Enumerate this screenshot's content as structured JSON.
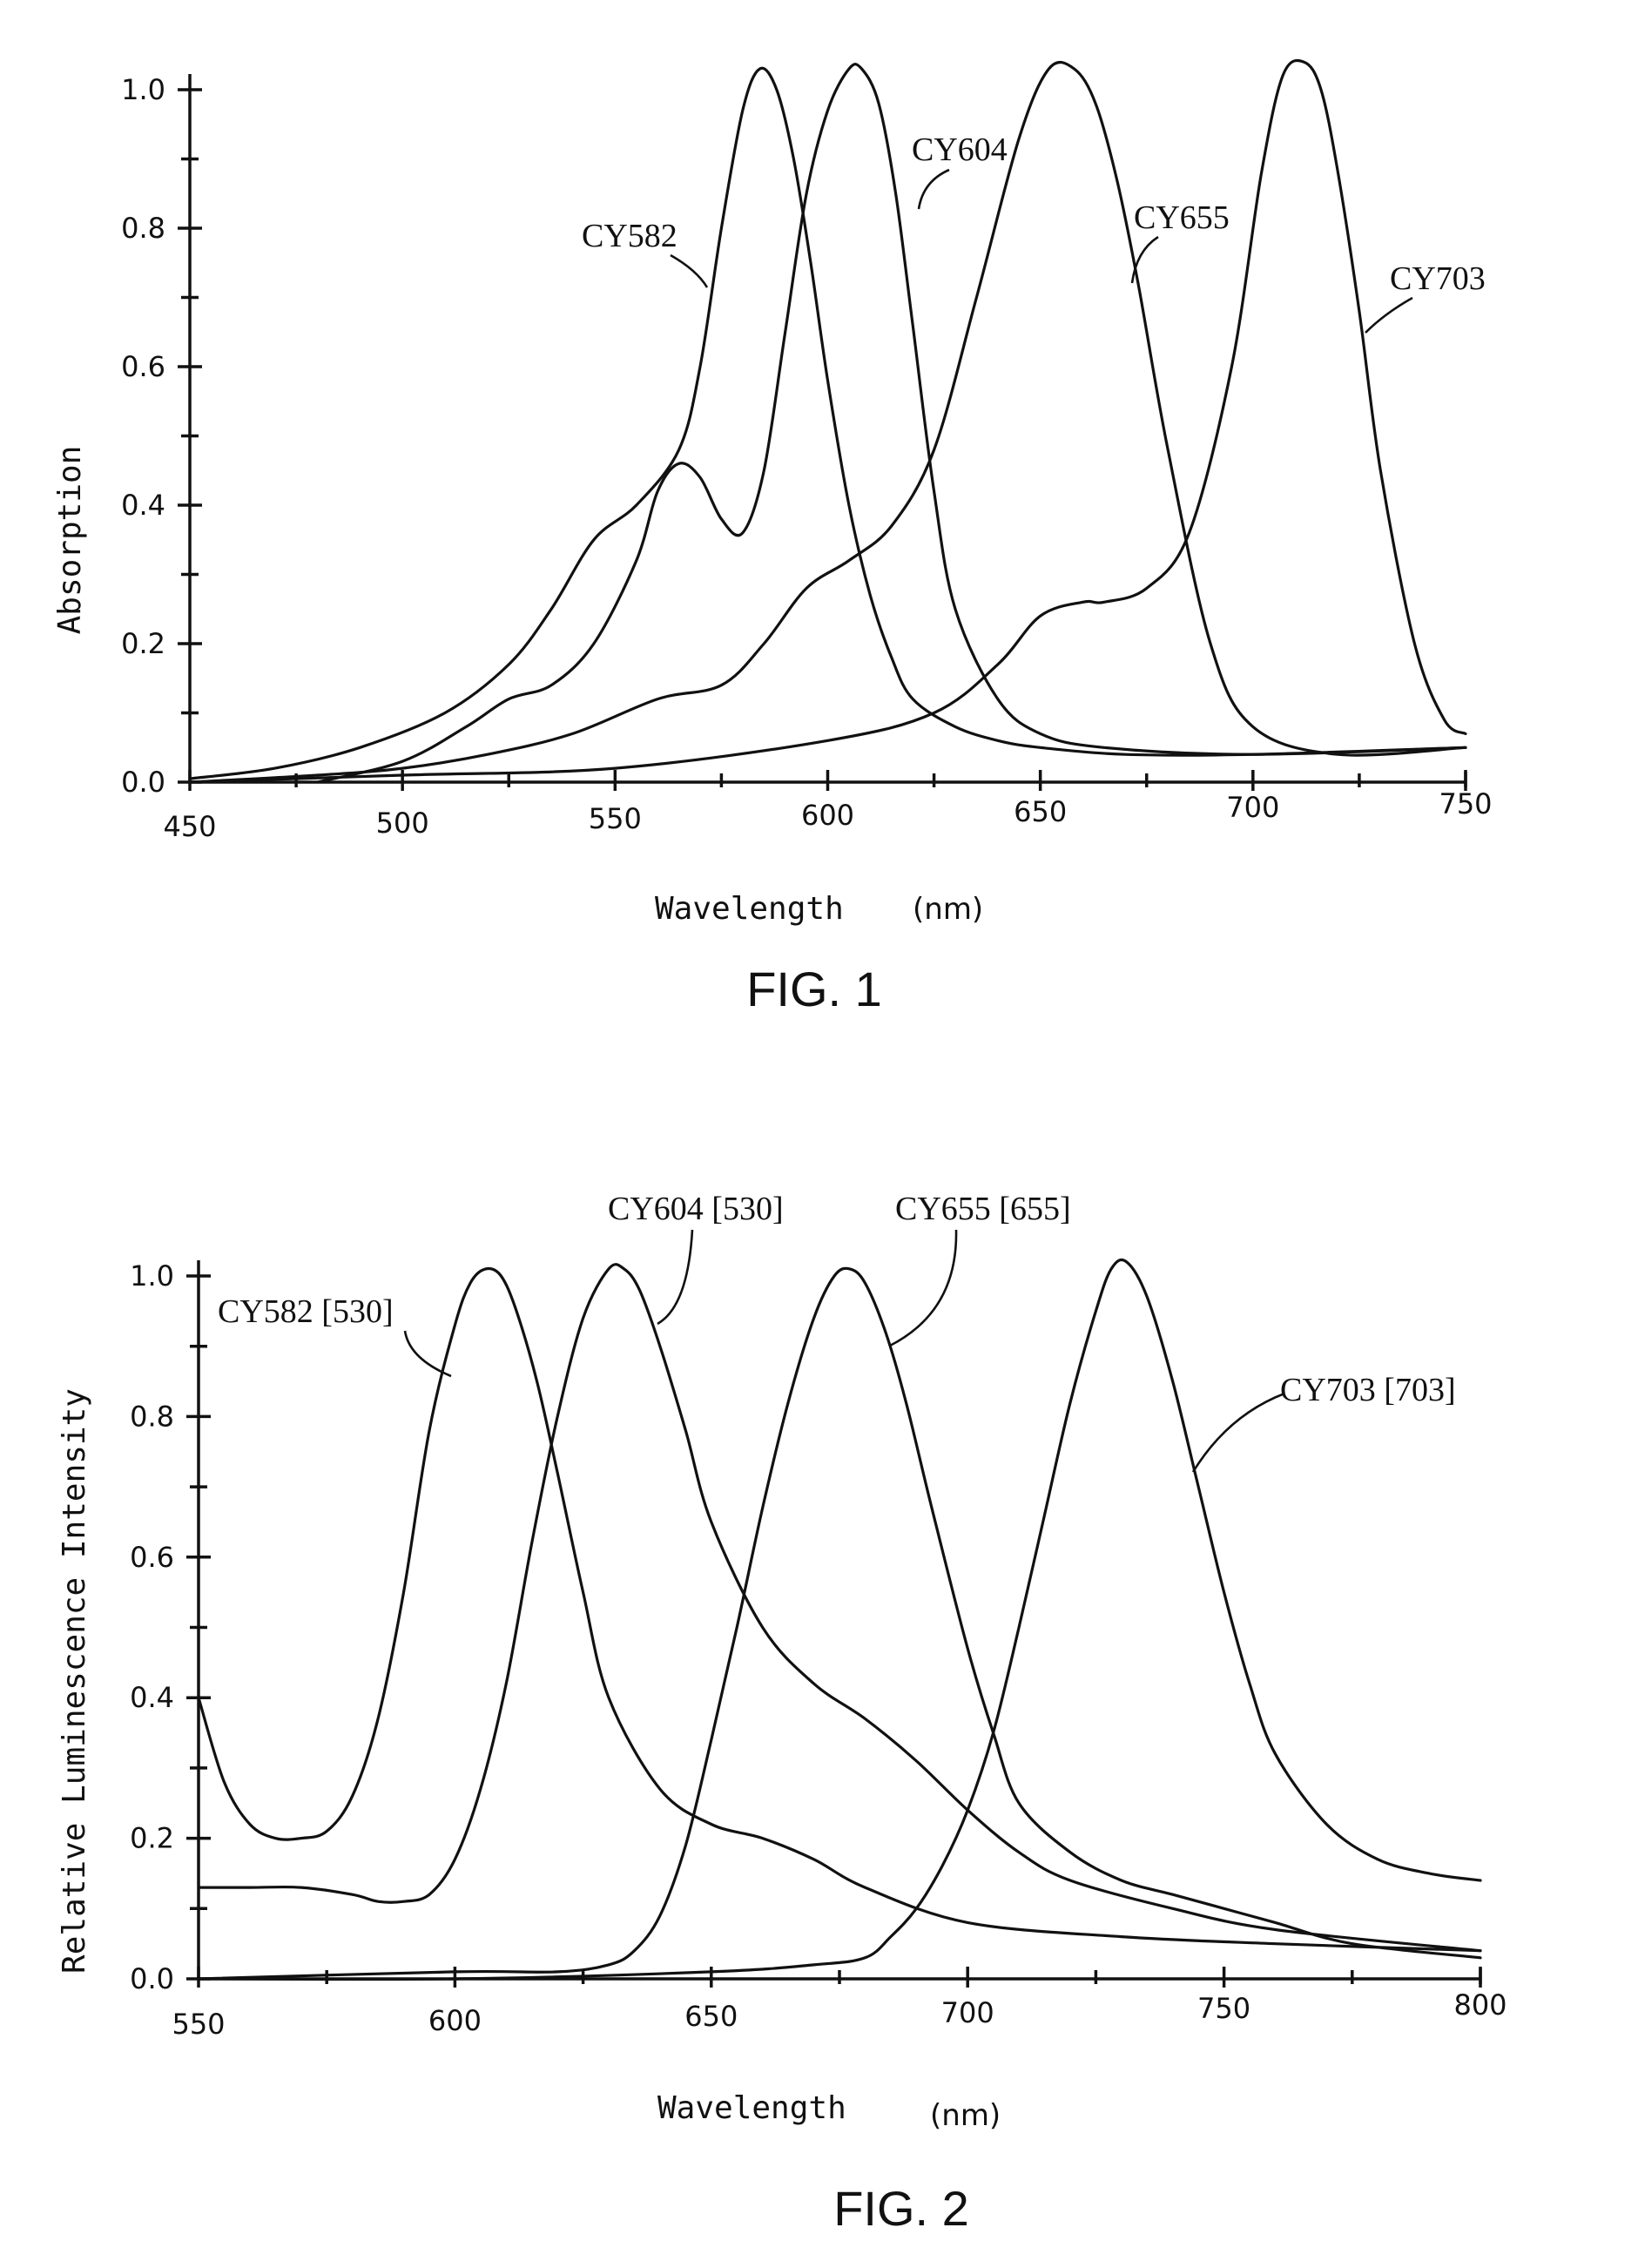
{
  "chart_data": [
    {
      "type": "line",
      "caption": "FIG. 1",
      "xlabel": "Wavelength",
      "xunit": "(nm)",
      "ylabel": "Absorption",
      "xlim": [
        450,
        750
      ],
      "ylim": [
        0,
        1.0
      ],
      "x_tick_labels": [
        "450",
        "500",
        "550",
        "600",
        "650",
        "700",
        "750"
      ],
      "y_tick_labels": [
        "0.0",
        "0.2",
        "0.4",
        "0.6",
        "0.8",
        "1.0"
      ],
      "series": [
        {
          "name": "CY582",
          "x": [
            450,
            470,
            490,
            510,
            525,
            535,
            545,
            555,
            565,
            570,
            575,
            580,
            584,
            588,
            592,
            596,
            600,
            605,
            610,
            615,
            620,
            630,
            640,
            650,
            670,
            700,
            750
          ],
          "y": [
            0.005,
            0.02,
            0.05,
            0.1,
            0.17,
            0.25,
            0.35,
            0.4,
            0.48,
            0.6,
            0.8,
            0.97,
            1.03,
            1.0,
            0.9,
            0.75,
            0.58,
            0.4,
            0.27,
            0.18,
            0.12,
            0.08,
            0.06,
            0.05,
            0.04,
            0.04,
            0.05
          ]
        },
        {
          "name": "CY604",
          "x": [
            480,
            500,
            515,
            525,
            535,
            545,
            555,
            560,
            565,
            570,
            575,
            580,
            585,
            590,
            595,
            600,
            605,
            608,
            612,
            616,
            620,
            625,
            630,
            640,
            650,
            665,
            700,
            750
          ],
          "y": [
            0.0,
            0.03,
            0.08,
            0.12,
            0.14,
            0.2,
            0.32,
            0.42,
            0.46,
            0.44,
            0.38,
            0.36,
            0.45,
            0.65,
            0.85,
            0.97,
            1.03,
            1.03,
            0.98,
            0.85,
            0.66,
            0.42,
            0.25,
            0.12,
            0.07,
            0.05,
            0.04,
            0.05
          ]
        },
        {
          "name": "CY655",
          "x": [
            450,
            480,
            500,
            520,
            540,
            560,
            575,
            585,
            595,
            605,
            615,
            625,
            635,
            645,
            652,
            658,
            663,
            668,
            673,
            680,
            690,
            700,
            720,
            750
          ],
          "y": [
            0.0,
            0.01,
            0.02,
            0.04,
            0.07,
            0.12,
            0.14,
            0.2,
            0.28,
            0.32,
            0.37,
            0.48,
            0.7,
            0.93,
            1.03,
            1.03,
            0.98,
            0.87,
            0.72,
            0.48,
            0.2,
            0.08,
            0.04,
            0.05
          ]
        },
        {
          "name": "CY703",
          "x": [
            450,
            500,
            550,
            600,
            625,
            640,
            650,
            660,
            665,
            675,
            685,
            695,
            702,
            707,
            712,
            716,
            720,
            725,
            730,
            738,
            745,
            750
          ],
          "y": [
            0.0,
            0.01,
            0.02,
            0.06,
            0.1,
            0.17,
            0.24,
            0.26,
            0.26,
            0.28,
            0.36,
            0.6,
            0.88,
            1.02,
            1.04,
            1.0,
            0.88,
            0.68,
            0.45,
            0.2,
            0.09,
            0.07
          ]
        }
      ]
    },
    {
      "type": "line",
      "caption": "FIG. 2",
      "xlabel": "Wavelength",
      "xunit": "(nm)",
      "ylabel": "Relative Luminescence Intensity",
      "xlim": [
        550,
        800
      ],
      "ylim": [
        0,
        1.0
      ],
      "x_tick_labels": [
        "550",
        "600",
        "650",
        "700",
        "750",
        "800"
      ],
      "y_tick_labels": [
        "0.0",
        "0.2",
        "0.4",
        "0.6",
        "0.8",
        "1.0"
      ],
      "series": [
        {
          "name": "CY582 [530]",
          "x": [
            550,
            555,
            560,
            565,
            570,
            575,
            580,
            585,
            590,
            595,
            600,
            603,
            606,
            609,
            612,
            616,
            620,
            625,
            630,
            640,
            650,
            660,
            670,
            680,
            700,
            730,
            760,
            800
          ],
          "y": [
            0.4,
            0.28,
            0.22,
            0.2,
            0.2,
            0.21,
            0.26,
            0.37,
            0.55,
            0.78,
            0.93,
            0.99,
            1.01,
            1.0,
            0.95,
            0.85,
            0.72,
            0.55,
            0.4,
            0.27,
            0.22,
            0.2,
            0.17,
            0.13,
            0.08,
            0.06,
            0.05,
            0.04
          ]
        },
        {
          "name": "CY604 [530]",
          "x": [
            550,
            560,
            570,
            580,
            585,
            590,
            595,
            600,
            605,
            610,
            615,
            620,
            625,
            630,
            633,
            636,
            640,
            645,
            650,
            660,
            670,
            680,
            690,
            700,
            710,
            720,
            740,
            760,
            800
          ],
          "y": [
            0.13,
            0.13,
            0.13,
            0.12,
            0.11,
            0.11,
            0.12,
            0.17,
            0.27,
            0.42,
            0.62,
            0.8,
            0.94,
            1.01,
            1.01,
            0.98,
            0.9,
            0.78,
            0.65,
            0.5,
            0.42,
            0.37,
            0.31,
            0.24,
            0.18,
            0.14,
            0.1,
            0.07,
            0.04
          ]
        },
        {
          "name": "CY655 [655]",
          "x": [
            550,
            600,
            620,
            630,
            635,
            640,
            645,
            650,
            655,
            660,
            665,
            670,
            674,
            677,
            680,
            684,
            688,
            693,
            700,
            705,
            710,
            720,
            730,
            740,
            750,
            760,
            775,
            800
          ],
          "y": [
            0.0,
            0.01,
            0.01,
            0.02,
            0.04,
            0.09,
            0.19,
            0.34,
            0.5,
            0.67,
            0.82,
            0.94,
            1.0,
            1.01,
            0.99,
            0.92,
            0.82,
            0.67,
            0.47,
            0.35,
            0.25,
            0.18,
            0.14,
            0.12,
            0.1,
            0.08,
            0.05,
            0.03
          ]
        },
        {
          "name": "CY703 [703]",
          "x": [
            550,
            600,
            650,
            670,
            680,
            685,
            690,
            695,
            700,
            705,
            710,
            715,
            720,
            725,
            728,
            731,
            735,
            740,
            745,
            750,
            755,
            760,
            770,
            780,
            790,
            800
          ],
          "y": [
            0.0,
            0.0,
            0.01,
            0.02,
            0.03,
            0.06,
            0.1,
            0.16,
            0.24,
            0.35,
            0.5,
            0.66,
            0.82,
            0.95,
            1.01,
            1.02,
            0.97,
            0.85,
            0.7,
            0.55,
            0.42,
            0.32,
            0.22,
            0.17,
            0.15,
            0.14
          ]
        }
      ]
    }
  ]
}
